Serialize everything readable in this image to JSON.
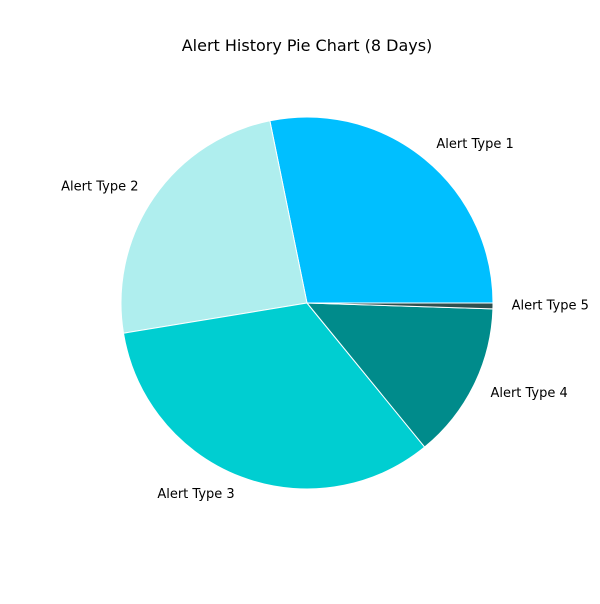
{
  "chart_data": {
    "type": "pie",
    "title": "Alert History Pie Chart (8 Days)",
    "slices": [
      {
        "label": "Alert Type 1",
        "value": 28.2,
        "color": "#00BFFF"
      },
      {
        "label": "Alert Type 2",
        "value": 24.4,
        "color": "#AFEEEE"
      },
      {
        "label": "Alert Type 3",
        "value": 33.3,
        "color": "#00CED1"
      },
      {
        "label": "Alert Type 4",
        "value": 13.6,
        "color": "#008B8B"
      },
      {
        "label": "Alert Type 5",
        "value": 0.5,
        "color": "#2F4F4F"
      }
    ],
    "start_angle_deg": 0,
    "direction": "counterclockwise",
    "legend": "none"
  }
}
